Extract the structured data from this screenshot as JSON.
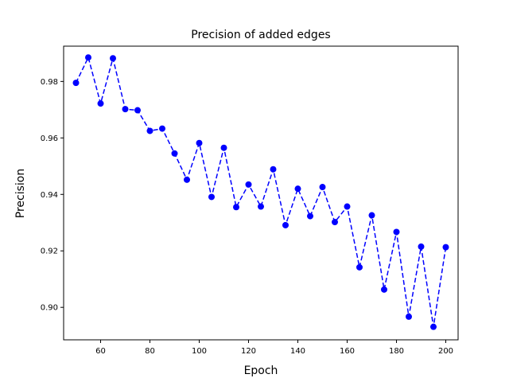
{
  "chart_data": {
    "type": "line",
    "title": "Precision of added edges",
    "xlabel": "Epoch",
    "ylabel": "Precision",
    "xlim": [
      45,
      205
    ],
    "ylim": [
      0.8885,
      0.9925
    ],
    "xticks": [
      60,
      80,
      100,
      120,
      140,
      160,
      180,
      200
    ],
    "yticks": [
      0.9,
      0.92,
      0.94,
      0.96,
      0.98
    ],
    "xtick_labels": [
      "60",
      "80",
      "100",
      "120",
      "140",
      "160",
      "180",
      "200"
    ],
    "ytick_labels": [
      "0.90",
      "0.92",
      "0.94",
      "0.96",
      "0.98"
    ],
    "grid": false,
    "series": [
      {
        "style": "dashed line with circle markers",
        "color": "#0000ff",
        "x": [
          50,
          55,
          60,
          65,
          70,
          75,
          80,
          85,
          90,
          95,
          100,
          105,
          110,
          115,
          120,
          125,
          130,
          135,
          140,
          145,
          150,
          155,
          160,
          165,
          170,
          175,
          180,
          185,
          190,
          195,
          200
        ],
        "y": [
          0.9795,
          0.9885,
          0.9722,
          0.9882,
          0.9702,
          0.9698,
          0.9625,
          0.9633,
          0.9545,
          0.9452,
          0.9582,
          0.9391,
          0.9565,
          0.9355,
          0.9435,
          0.9357,
          0.9489,
          0.9291,
          0.942,
          0.9323,
          0.9426,
          0.9302,
          0.9357,
          0.9142,
          0.9326,
          0.9063,
          0.9267,
          0.8967,
          0.9215,
          0.8931,
          0.9213
        ]
      }
    ]
  }
}
